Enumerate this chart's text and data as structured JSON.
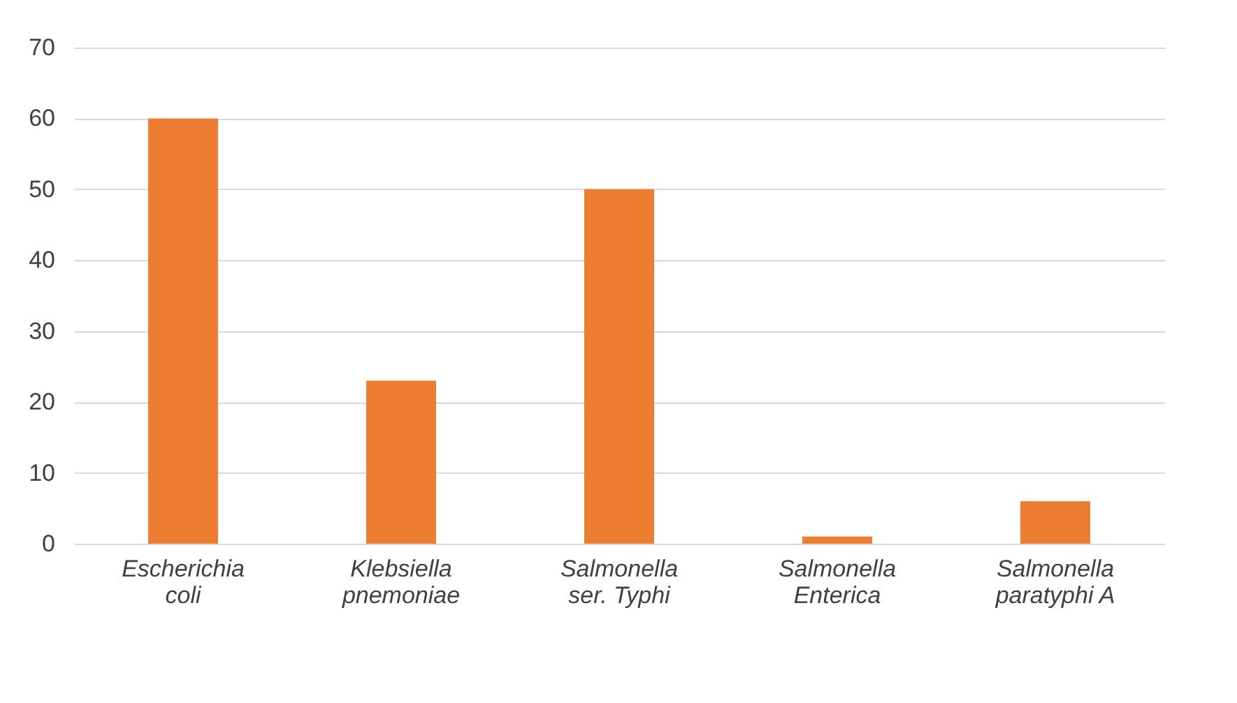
{
  "chart_data": {
    "type": "bar",
    "categories": [
      "Escherichia coli",
      "Klebsiella pnemoniae",
      "Salmonella ser. Typhi",
      "Salmonella Enterica",
      "Salmonella paratyphi A"
    ],
    "values": [
      60,
      23,
      50,
      1,
      6
    ],
    "color": "#ed7d31",
    "ylim": [
      0,
      70
    ],
    "yticks": [
      0,
      10,
      20,
      30,
      40,
      50,
      60,
      70
    ],
    "grid": "y"
  }
}
